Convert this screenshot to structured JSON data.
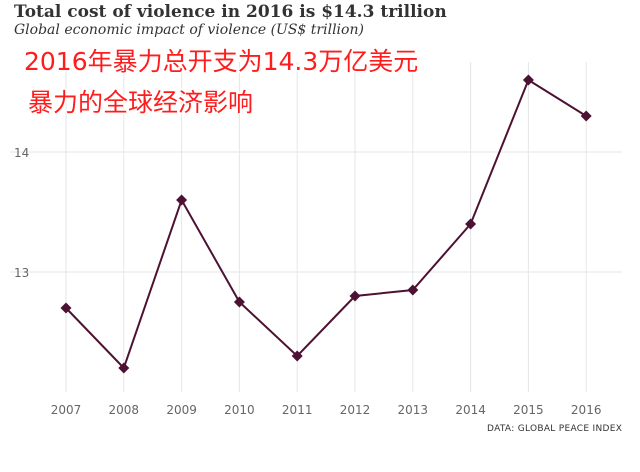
{
  "header": {
    "title": "Total cost of violence in 2016 is $14.3 trillion",
    "subtitle": "Global economic impact of violence (US$ trillion)"
  },
  "overlay": {
    "line1": "2016年暴力总开支为14.3万亿美元",
    "line2": "暴力的全球经济影响",
    "fill_color": "#ff1c1c",
    "stroke_color": "#ffffff"
  },
  "source": "DATA: GLOBAL PEACE INDEX",
  "colors": {
    "line": "#4d1233",
    "grid": "#e6e6ea",
    "tick_text": "#666666"
  },
  "chart_data": {
    "type": "line",
    "x": [
      "2007",
      "2008",
      "2009",
      "2010",
      "2011",
      "2012",
      "2013",
      "2014",
      "2015",
      "2016"
    ],
    "series": [
      {
        "values": [
          12.7,
          12.2,
          13.6,
          12.75,
          12.3,
          12.8,
          12.85,
          13.4,
          14.6,
          14.3
        ]
      }
    ],
    "y_ticks": [
      "14",
      "13"
    ],
    "ylim": [
      12.0,
      14.75
    ],
    "grid": true,
    "marker": "diamond"
  }
}
